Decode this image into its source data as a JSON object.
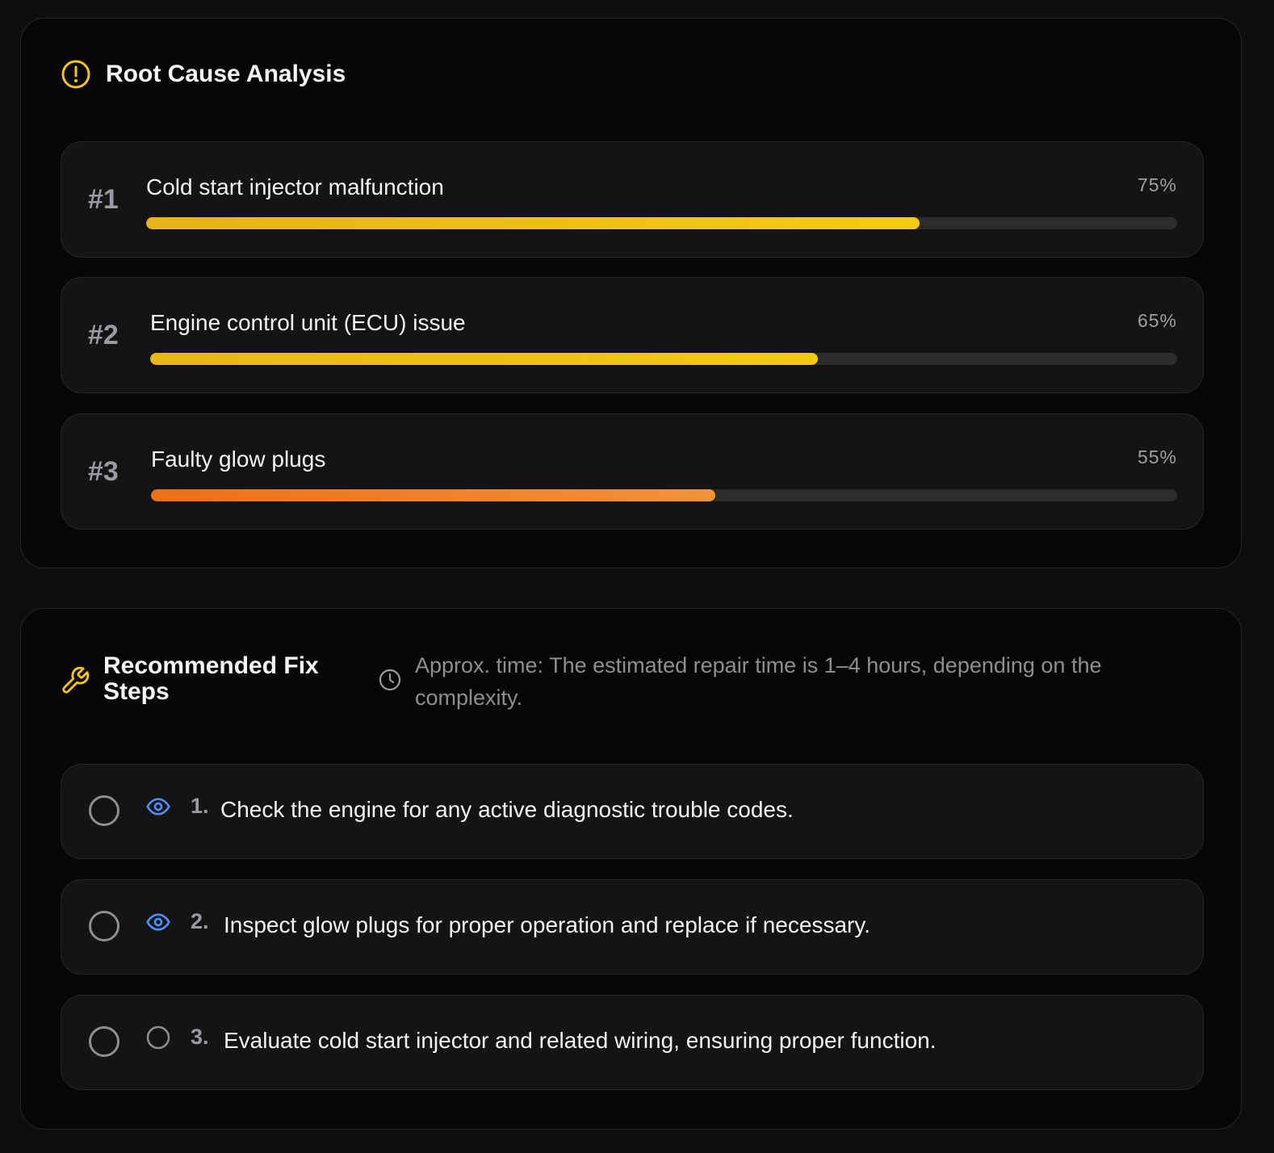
{
  "root_cause": {
    "title": "Root Cause Analysis",
    "icon": "alert-circle-icon",
    "causes": [
      {
        "rank": "#1",
        "name": "Cold start injector malfunction",
        "percent_label": "75%",
        "confidence": 75,
        "color_start": "#e5b417",
        "color_end": "#f5cb12"
      },
      {
        "rank": "#2",
        "name": "Engine control unit (ECU) issue",
        "percent_label": "65%",
        "confidence": 65,
        "color_start": "#e8b716",
        "color_end": "#f4c912"
      },
      {
        "rank": "#3",
        "name": "Faulty glow plugs",
        "percent_label": "55%",
        "confidence": 55,
        "color_start": "#ef6f17",
        "color_end": "#f2923a"
      }
    ]
  },
  "fix_steps": {
    "title": "Recommended Fix Steps",
    "icon": "wrench-icon",
    "time_icon": "clock-icon",
    "approx_time": "Approx. time: The estimated repair time is 1–4 hours, depending on the complexity.",
    "steps": [
      {
        "number": "1.",
        "text": "Check the engine for any active diagnostic trouble codes.",
        "icon": "eye-icon"
      },
      {
        "number": "2.",
        "text": "Inspect glow plugs for proper operation and replace if necessary.",
        "icon": "eye-icon"
      },
      {
        "number": "3.",
        "text": "Evaluate cold start injector and related wiring, ensuring proper function.",
        "icon": "circle-icon"
      }
    ]
  },
  "colors": {
    "accent": "#f5c518",
    "eye": "#4d8ef7"
  }
}
